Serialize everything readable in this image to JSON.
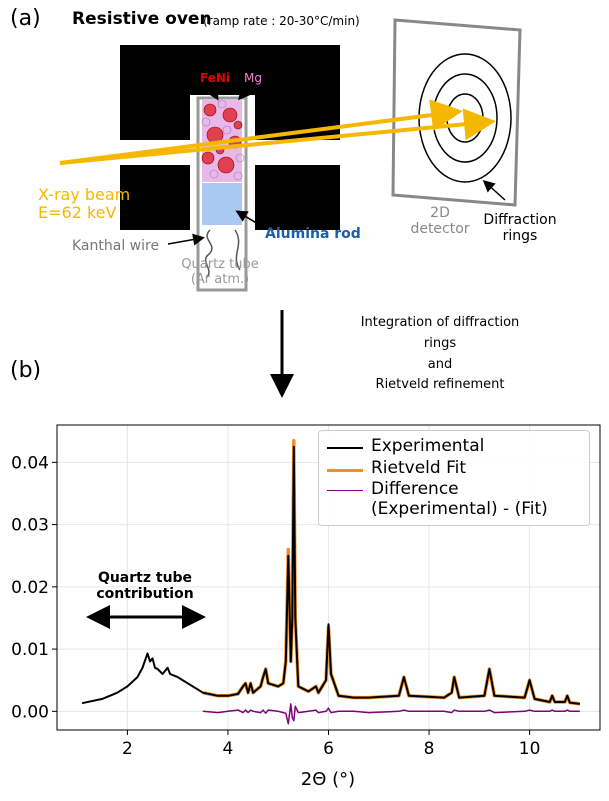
{
  "diagram": {
    "panel_a": "(a)",
    "oven_title": "Resistive oven",
    "ramp_rate": "(ramp rate : 20-30°C/min)",
    "feni": "FeNi",
    "mg": "Mg",
    "xray": "X-ray beam\nE=62 keV",
    "kanthal": "Kanthal wire",
    "alumina": "Alumina rod",
    "quartz": "Quartz tube\n(Ar atm.)",
    "detector": "2D\ndetector",
    "rings": "Diffraction\nrings",
    "process": "Integration of diffraction rings\nand\nRietveld refinement",
    "panel_b": "(b)"
  },
  "chart_data": {
    "type": "line",
    "xlabel": "2Θ (°)",
    "x": [
      1.1,
      1.5,
      1.8,
      2.0,
      2.2,
      2.3,
      2.4,
      2.45,
      2.5,
      2.55,
      2.6,
      2.7,
      2.8,
      2.85,
      3.0,
      3.2,
      3.4,
      3.5,
      3.8,
      4.0,
      4.2,
      4.3,
      4.35,
      4.4,
      4.45,
      4.5,
      4.65,
      4.7,
      4.75,
      4.8,
      5.0,
      5.1,
      5.15,
      5.2,
      5.25,
      5.28,
      5.31,
      5.34,
      5.4,
      5.6,
      5.75,
      5.8,
      5.95,
      6.0,
      6.05,
      6.2,
      6.5,
      6.8,
      7.4,
      7.5,
      7.6,
      8.3,
      8.45,
      8.5,
      8.6,
      9.1,
      9.2,
      9.3,
      9.9,
      10.0,
      10.1,
      10.4,
      10.45,
      10.5,
      10.7,
      10.75,
      10.8,
      11.0
    ],
    "series": [
      {
        "name": "Rietveld Fit",
        "color": "#f28e2b",
        "width": 3.5,
        "values": [
          null,
          null,
          null,
          null,
          null,
          null,
          null,
          null,
          null,
          null,
          null,
          null,
          null,
          null,
          null,
          null,
          null,
          0.003,
          0.0025,
          0.0025,
          0.0028,
          0.004,
          0.0045,
          0.003,
          0.0045,
          0.003,
          0.004,
          0.0055,
          0.0068,
          0.0045,
          0.004,
          0.0045,
          0.008,
          0.026,
          0.008,
          0.015,
          0.0435,
          0.015,
          0.004,
          0.0032,
          0.004,
          0.003,
          0.005,
          0.0135,
          0.006,
          0.0025,
          0.0022,
          0.0022,
          0.0025,
          0.0055,
          0.0025,
          0.0022,
          0.003,
          0.0055,
          0.0022,
          0.0025,
          0.0068,
          0.0025,
          0.0022,
          0.005,
          0.002,
          0.0015,
          0.0025,
          0.0015,
          0.0015,
          0.0025,
          0.0014,
          0.0012
        ]
      },
      {
        "name": "Experimental",
        "color": "#000000",
        "width": 2,
        "values": [
          0.0013,
          0.002,
          0.003,
          0.004,
          0.0055,
          0.007,
          0.0093,
          0.008,
          0.0085,
          0.007,
          0.0068,
          0.006,
          0.007,
          0.006,
          0.0055,
          0.0045,
          0.0035,
          0.003,
          0.0025,
          0.0025,
          0.0028,
          0.004,
          0.0045,
          0.003,
          0.0045,
          0.003,
          0.004,
          0.0055,
          0.0068,
          0.0045,
          0.004,
          0.0045,
          0.008,
          0.025,
          0.008,
          0.015,
          0.0425,
          0.015,
          0.004,
          0.0032,
          0.004,
          0.003,
          0.005,
          0.014,
          0.006,
          0.0025,
          0.0022,
          0.0022,
          0.0025,
          0.0055,
          0.0025,
          0.0022,
          0.003,
          0.0055,
          0.0022,
          0.0025,
          0.0068,
          0.0025,
          0.0022,
          0.005,
          0.002,
          0.0015,
          0.0025,
          0.0015,
          0.0015,
          0.0025,
          0.0014,
          0.0012
        ]
      },
      {
        "name": "Difference\n(Experimental) - (Fit)",
        "color": "#800080",
        "width": 1.5,
        "values": [
          null,
          null,
          null,
          null,
          null,
          null,
          null,
          null,
          null,
          null,
          null,
          null,
          null,
          null,
          null,
          null,
          null,
          0,
          -0.0002,
          0,
          0.0002,
          -0.0002,
          0.0002,
          -0.0002,
          0.0002,
          0,
          -0.0002,
          0.0002,
          -0.0003,
          0.0002,
          0,
          -0.0002,
          -0.0003,
          -0.002,
          0.0012,
          -0.001,
          -0.0015,
          0.0008,
          -0.0002,
          0,
          0.0002,
          -0.0002,
          0,
          0.0005,
          -0.0002,
          0,
          0,
          -0.0002,
          0,
          0.0002,
          0,
          0,
          -0.0002,
          0.0002,
          0,
          0,
          0.0002,
          -0.0002,
          0,
          0.0002,
          0,
          0,
          0.0002,
          0,
          0,
          0.0002,
          0,
          0
        ]
      }
    ],
    "legend_order": [
      1,
      0,
      2
    ],
    "xlim": [
      0.6,
      11.4
    ],
    "ylim": [
      -0.003,
      0.046
    ],
    "xticks": [
      2,
      4,
      6,
      8,
      10
    ],
    "yticks": [
      {
        "value": 0,
        "label": "0.00"
      },
      {
        "value": 0.01,
        "label": "0.01"
      },
      {
        "value": 0.02,
        "label": "0.02"
      },
      {
        "value": 0.03,
        "label": "0.03"
      },
      {
        "value": 0.04,
        "label": "0.04"
      }
    ],
    "grid": true,
    "annotation": "Quartz tube\ncontribution"
  }
}
